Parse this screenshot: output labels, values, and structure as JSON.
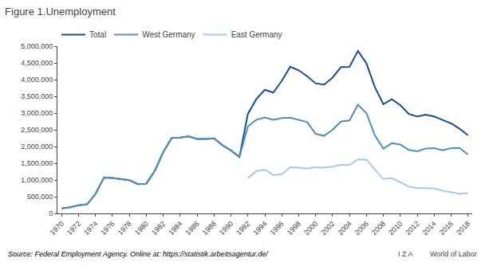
{
  "chart_data": {
    "type": "line",
    "title": "Figure 1.Unemployment",
    "annotations": [
      "Source: Federal Employment Agency. Online at: https://statistik.arbeitsagentur.de/",
      "I Z A",
      "World of Labor"
    ],
    "x": [
      1970,
      1971,
      1972,
      1973,
      1974,
      1975,
      1976,
      1977,
      1978,
      1979,
      1980,
      1981,
      1982,
      1983,
      1984,
      1985,
      1986,
      1987,
      1988,
      1989,
      1990,
      1991,
      1992,
      1993,
      1994,
      1995,
      1996,
      1997,
      1998,
      1999,
      2000,
      2001,
      2002,
      2003,
      2004,
      2005,
      2006,
      2007,
      2008,
      2009,
      2010,
      2011,
      2012,
      2013,
      2014,
      2015,
      2016,
      2017,
      2018
    ],
    "series": [
      {
        "name": "Total",
        "color": "#1a4f8a",
        "values": [
          150000,
          185000,
          246000,
          273000,
          582000,
          1074000,
          1060000,
          1030000,
          992000,
          876000,
          889000,
          1272000,
          1833000,
          2258000,
          2266000,
          2304000,
          2228000,
          2229000,
          2242000,
          2038000,
          1883000,
          1689000,
          2978000,
          3419000,
          3698000,
          3612000,
          3965000,
          4384000,
          4279000,
          4100000,
          3889000,
          3852000,
          4061000,
          4377000,
          4381000,
          4861000,
          4487000,
          3776000,
          3268000,
          3415000,
          3238000,
          2976000,
          2897000,
          2950000,
          2898000,
          2795000,
          2691000,
          2533000,
          2340000
        ]
      },
      {
        "name": "West Germany",
        "color": "#4f8fbf",
        "values": [
          150000,
          185000,
          246000,
          273000,
          582000,
          1074000,
          1060000,
          1030000,
          992000,
          876000,
          889000,
          1272000,
          1833000,
          2258000,
          2266000,
          2304000,
          2228000,
          2229000,
          2242000,
          2038000,
          1883000,
          1689000,
          2600000,
          2800000,
          2870000,
          2800000,
          2850000,
          2860000,
          2790000,
          2730000,
          2380000,
          2320000,
          2500000,
          2750000,
          2780000,
          3250000,
          3000000,
          2330000,
          1940000,
          2100000,
          2060000,
          1900000,
          1860000,
          1940000,
          1950000,
          1890000,
          1950000,
          1960000,
          1760000
        ]
      },
      {
        "name": "East Germany",
        "color": "#a8c8e8",
        "values": [
          null,
          null,
          null,
          null,
          null,
          null,
          null,
          null,
          null,
          null,
          null,
          null,
          null,
          null,
          null,
          null,
          null,
          null,
          null,
          null,
          null,
          null,
          1050000,
          1270000,
          1310000,
          1150000,
          1170000,
          1380000,
          1370000,
          1340000,
          1380000,
          1370000,
          1400000,
          1460000,
          1440000,
          1614000,
          1610000,
          1319000,
          1028000,
          1054000,
          940000,
          800000,
          754000,
          756000,
          751000,
          680000,
          640000,
          590000,
          610000
        ]
      }
    ],
    "xlim": [
      1969.5,
      2018.5
    ],
    "xticks": [
      1970,
      1972,
      1974,
      1976,
      1978,
      1980,
      1982,
      1984,
      1986,
      1988,
      1990,
      1992,
      1994,
      1996,
      1998,
      2000,
      2002,
      2004,
      2006,
      2008,
      2010,
      2012,
      2014,
      2016,
      2018
    ],
    "ylim": [
      0,
      5000000
    ],
    "yticks": [
      0,
      {
        "value": 500000,
        "label": "500,000"
      },
      {
        "value": 1000000,
        "label": "1,000,000"
      },
      {
        "value": 1500000,
        "label": "1,500,000"
      },
      {
        "value": 2000000,
        "label": "2,000,000"
      },
      {
        "value": 2500000,
        "label": "2,500,000"
      },
      {
        "value": 3000000,
        "label": "3,000,000"
      },
      {
        "value": 3500000,
        "label": "3,500,000"
      },
      {
        "value": 4000000,
        "label": "4,000,000"
      },
      {
        "value": 4500000,
        "label": "4,500,000"
      },
      {
        "value": 5000000,
        "label": "5,000,000"
      }
    ],
    "grid": false,
    "legend": "upper left"
  }
}
